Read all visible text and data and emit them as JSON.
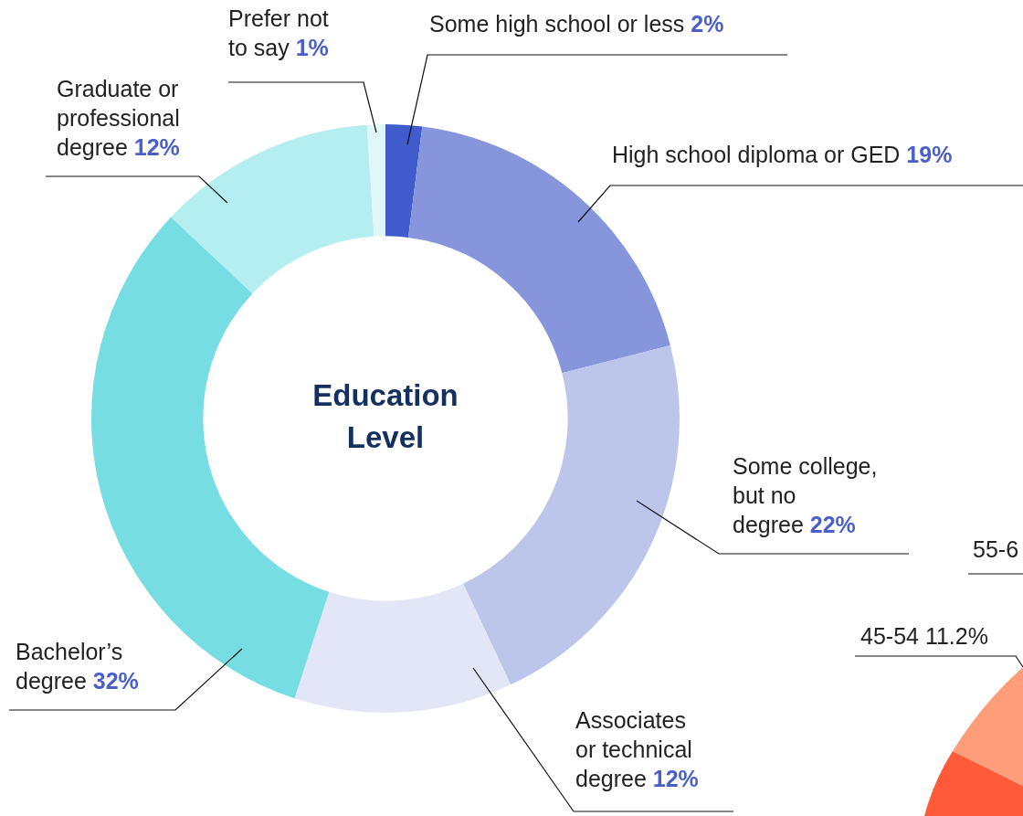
{
  "chart_data": {
    "type": "donut",
    "title": "Education Level",
    "categories": [
      "Some high school or less",
      "High school diploma or GED",
      "Some college, but no degree",
      "Associates or technical degree",
      "Bachelor’s degree",
      "Graduate or professional degree",
      "Prefer not to say"
    ],
    "values": [
      2,
      19,
      22,
      12,
      32,
      12,
      1
    ],
    "colors": [
      "#3f5bcc",
      "#8796dc",
      "#bcc6eb",
      "#e3e6f7",
      "#76dde2",
      "#b5eef0",
      "#e0f7f8"
    ],
    "value_labels": [
      "2%",
      "19%",
      "22%",
      "12%",
      "32%",
      "12%",
      "1%"
    ],
    "annotations": [
      "55-6",
      "45-54 11.2%"
    ],
    "legend": false
  }
}
